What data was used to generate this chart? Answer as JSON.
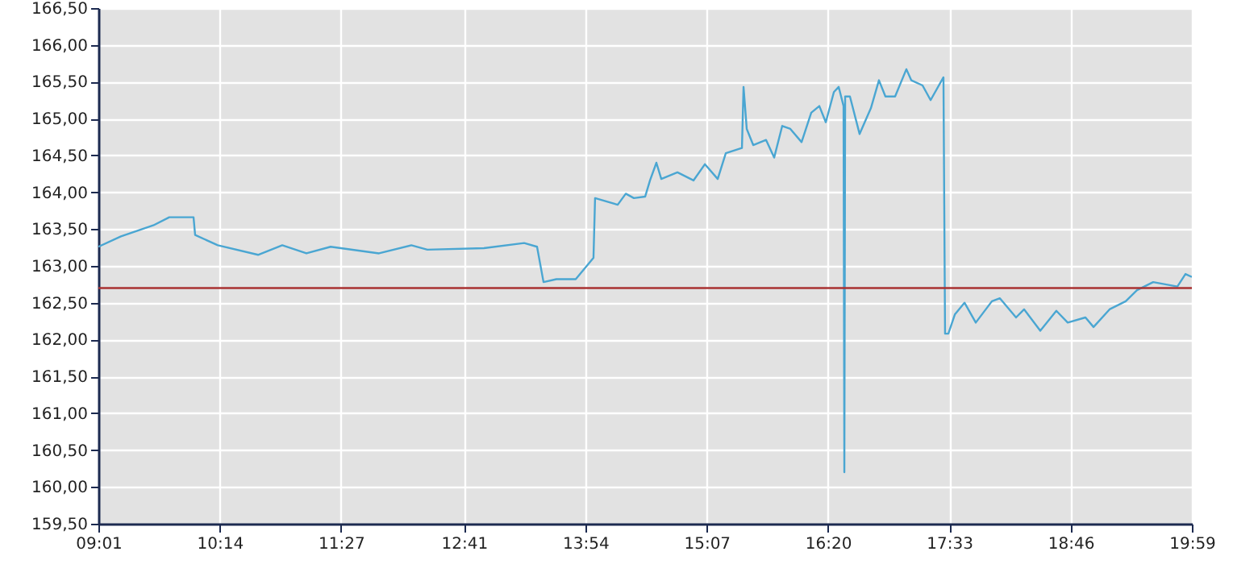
{
  "chart_data": {
    "type": "line",
    "series": [
      {
        "color": "#4aa6d2",
        "x": [
          9.017,
          9.243,
          9.567,
          9.728,
          9.971,
          9.987,
          10.214,
          10.618,
          10.861,
          11.103,
          11.346,
          11.831,
          12.155,
          12.316,
          12.883,
          13.287,
          13.416,
          13.481,
          13.61,
          13.804,
          13.982,
          13.998,
          14.225,
          14.306,
          14.387,
          14.5,
          14.549,
          14.613,
          14.662,
          14.824,
          14.985,
          15.099,
          15.228,
          15.309,
          15.471,
          15.487,
          15.519,
          15.584,
          15.713,
          15.794,
          15.875,
          15.956,
          16.069,
          16.166,
          16.247,
          16.312,
          16.393,
          16.441,
          16.49,
          16.498,
          16.506,
          16.554,
          16.651,
          16.764,
          16.845,
          16.91,
          17.007,
          17.12,
          17.169,
          17.282,
          17.363,
          17.492,
          17.508,
          17.541,
          17.606,
          17.703,
          17.816,
          17.978,
          18.058,
          18.22,
          18.301,
          18.463,
          18.624,
          18.738,
          18.916,
          18.997,
          19.158,
          19.32,
          19.433,
          19.595,
          19.838,
          19.919,
          19.983
        ],
        "values": [
          163.26,
          163.4,
          163.55,
          163.66,
          163.66,
          163.42,
          163.28,
          163.15,
          163.28,
          163.17,
          163.26,
          163.17,
          163.28,
          163.22,
          163.24,
          163.31,
          163.26,
          162.78,
          162.82,
          162.82,
          163.11,
          163.92,
          163.83,
          163.98,
          163.92,
          163.94,
          164.16,
          164.4,
          164.18,
          164.27,
          164.16,
          164.38,
          164.18,
          164.53,
          164.6,
          165.43,
          164.86,
          164.64,
          164.71,
          164.47,
          164.9,
          164.86,
          164.68,
          165.08,
          165.17,
          164.95,
          165.36,
          165.43,
          165.17,
          160.2,
          165.3,
          165.3,
          164.79,
          165.14,
          165.52,
          165.3,
          165.3,
          165.67,
          165.52,
          165.45,
          165.25,
          165.56,
          162.08,
          162.08,
          162.34,
          162.5,
          162.23,
          162.52,
          162.56,
          162.3,
          162.41,
          162.12,
          162.39,
          162.23,
          162.3,
          162.17,
          162.41,
          162.52,
          162.67,
          162.78,
          162.72,
          162.89,
          162.85
        ]
      }
    ],
    "xlim": [
      9.0167,
      19.9833
    ],
    "xticks": [
      {
        "value": 9.0167,
        "label": "09:01"
      },
      {
        "value": 10.2333,
        "label": "10:14"
      },
      {
        "value": 11.45,
        "label": "11:27"
      },
      {
        "value": 12.6833,
        "label": "12:41"
      },
      {
        "value": 13.9,
        "label": "13:54"
      },
      {
        "value": 15.1167,
        "label": "15:07"
      },
      {
        "value": 16.3333,
        "label": "16:20"
      },
      {
        "value": 17.55,
        "label": "17:33"
      },
      {
        "value": 18.7667,
        "label": "18:46"
      },
      {
        "value": 19.9833,
        "label": "19:59"
      }
    ],
    "ylim": [
      159.5,
      166.5
    ],
    "yticks": [
      {
        "value": 159.5,
        "label": "159,50"
      },
      {
        "value": 160,
        "label": "160,00"
      },
      {
        "value": 160.5,
        "label": "160,50"
      },
      {
        "value": 161,
        "label": "161,00"
      },
      {
        "value": 161.5,
        "label": "161,50"
      },
      {
        "value": 162,
        "label": "162,00"
      },
      {
        "value": 162.5,
        "label": "162,50"
      },
      {
        "value": 163,
        "label": "163,00"
      },
      {
        "value": 163.5,
        "label": "163,50"
      },
      {
        "value": 164,
        "label": "164,00"
      },
      {
        "value": 164.5,
        "label": "164,50"
      },
      {
        "value": 165,
        "label": "165,00"
      },
      {
        "value": 165.5,
        "label": "165,50"
      },
      {
        "value": 166,
        "label": "166,00"
      },
      {
        "value": 166.5,
        "label": "166,50"
      }
    ],
    "ref_lines": [
      {
        "axis": "y",
        "value": 162.7,
        "color": "#a83232"
      }
    ],
    "grid": true
  }
}
